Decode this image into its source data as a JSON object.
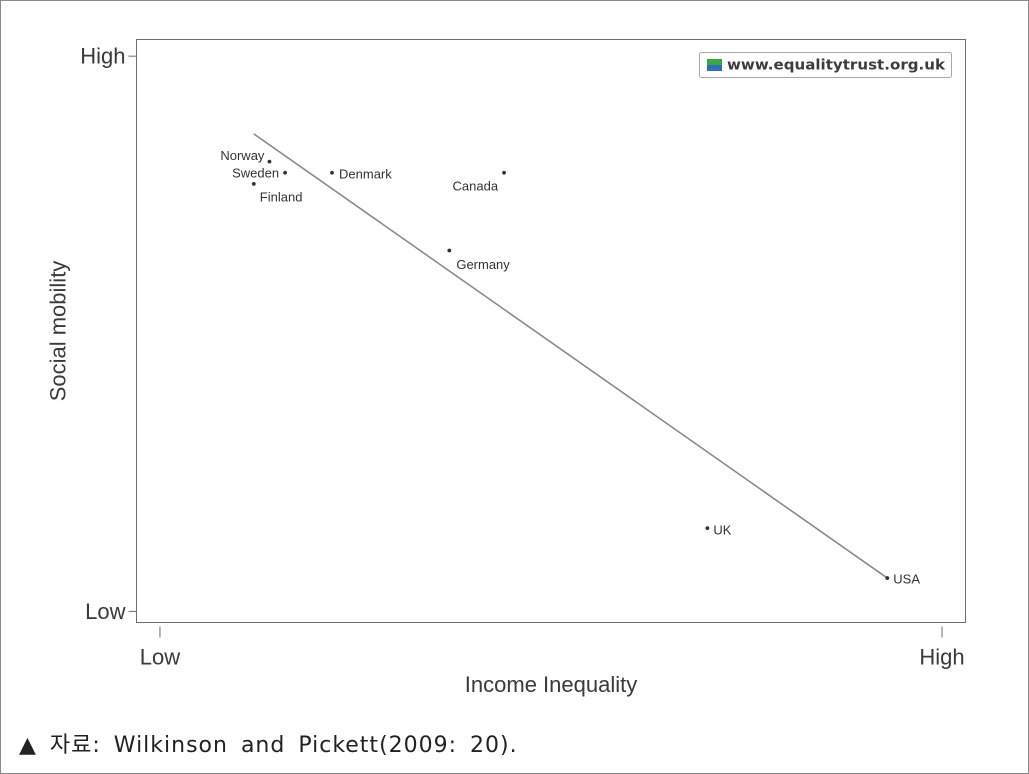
{
  "chart_data": {
    "type": "scatter",
    "xlabel": "Income Inequality",
    "ylabel": "Social mobility",
    "x_ticks": [
      {
        "value": 0,
        "label": "Low"
      },
      {
        "value": 10,
        "label": "High"
      }
    ],
    "y_ticks": [
      {
        "value": 0,
        "label": "Low"
      },
      {
        "value": 10,
        "label": "High"
      }
    ],
    "xlim": [
      -0.3,
      10.3
    ],
    "ylim": [
      -0.2,
      10.3
    ],
    "grid": false,
    "points": [
      {
        "label": "Norway",
        "x": 1.4,
        "y": 8.1
      },
      {
        "label": "Sweden",
        "x": 1.6,
        "y": 7.9
      },
      {
        "label": "Finland",
        "x": 1.2,
        "y": 7.7
      },
      {
        "label": "Denmark",
        "x": 2.2,
        "y": 7.9
      },
      {
        "label": "Canada",
        "x": 4.4,
        "y": 7.9
      },
      {
        "label": "Germany",
        "x": 3.7,
        "y": 6.5
      },
      {
        "label": "UK",
        "x": 7.0,
        "y": 1.5
      },
      {
        "label": "USA",
        "x": 9.3,
        "y": 0.6
      }
    ],
    "fit_line": {
      "x": [
        1.2,
        9.3
      ],
      "y": [
        8.6,
        0.6
      ]
    },
    "source_badge": {
      "text": "www.equalitytrust.org.uk",
      "icon": "equality-trust-logo-icon",
      "position": "top-right"
    }
  },
  "caption": "▲ 자료: Wilkinson and Pickett(2009: 20).",
  "colors": {
    "points": "#333333",
    "fit_line": "#8a8a8a",
    "frame": "#6e6e6e",
    "logo_green": "#3aa648",
    "logo_blue": "#2f6fb8"
  }
}
